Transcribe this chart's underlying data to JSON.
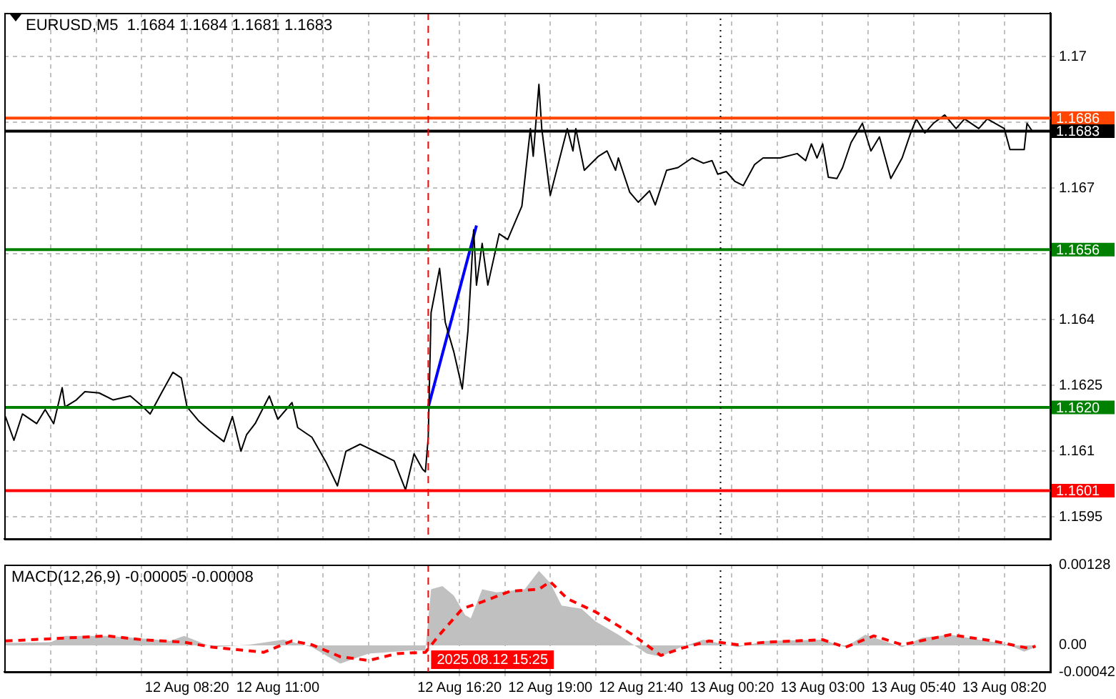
{
  "chart_data": [
    {
      "type": "line",
      "title": "EURUSD,M5  1.1684 1.1684 1.1681 1.1683",
      "x": [
        "2025-08-12T03:00",
        "2025-08-12T03:15",
        "2025-08-12T03:30",
        "2025-08-12T03:55",
        "2025-08-12T04:10",
        "2025-08-12T04:25",
        "2025-08-12T04:40",
        "2025-08-12T04:45",
        "2025-08-12T05:05",
        "2025-08-12T05:20",
        "2025-08-12T05:45",
        "2025-08-12T06:10",
        "2025-08-12T06:40",
        "2025-08-12T07:00",
        "2025-08-12T07:15",
        "2025-08-12T07:35",
        "2025-08-12T07:55",
        "2025-08-12T08:10",
        "2025-08-12T08:20",
        "2025-08-12T08:40",
        "2025-08-12T09:00",
        "2025-08-12T09:25",
        "2025-08-12T09:40",
        "2025-08-12T09:55",
        "2025-08-12T10:05",
        "2025-08-12T10:20",
        "2025-08-12T10:45",
        "2025-08-12T11:00",
        "2025-08-12T11:25",
        "2025-08-12T11:35",
        "2025-08-12T12:00",
        "2025-08-12T12:25",
        "2025-08-12T12:45",
        "2025-08-12T13:00",
        "2025-08-12T13:25",
        "2025-08-12T14:00",
        "2025-08-12T14:25",
        "2025-08-12T14:45",
        "2025-08-12T15:00",
        "2025-08-12T15:15",
        "2025-08-12T15:20",
        "2025-08-12T15:25",
        "2025-08-12T15:30",
        "2025-08-12T15:45",
        "2025-08-12T15:55",
        "2025-08-12T16:10",
        "2025-08-12T16:25",
        "2025-08-12T16:35",
        "2025-08-12T16:45",
        "2025-08-12T16:50",
        "2025-08-12T17:00",
        "2025-08-12T17:10",
        "2025-08-12T17:30",
        "2025-08-12T17:45",
        "2025-08-12T18:10",
        "2025-08-12T18:25",
        "2025-08-12T18:30",
        "2025-08-12T18:40",
        "2025-08-12T18:45",
        "2025-08-12T19:00",
        "2025-08-12T19:30",
        "2025-08-12T19:40",
        "2025-08-12T19:45",
        "2025-08-12T20:00",
        "2025-08-12T20:25",
        "2025-08-12T20:40",
        "2025-08-12T20:55",
        "2025-08-12T21:00",
        "2025-08-12T21:20",
        "2025-08-12T21:35",
        "2025-08-12T21:55",
        "2025-08-12T22:05",
        "2025-08-12T22:25",
        "2025-08-12T22:45",
        "2025-08-12T23:10",
        "2025-08-12T23:30",
        "2025-08-12T23:45",
        "2025-08-12T23:55",
        "2025-08-13T00:10",
        "2025-08-13T00:25",
        "2025-08-13T00:40",
        "2025-08-13T01:00",
        "2025-08-13T01:15",
        "2025-08-13T01:45",
        "2025-08-13T02:15",
        "2025-08-13T02:30",
        "2025-08-13T02:40",
        "2025-08-13T02:50",
        "2025-08-13T03:00",
        "2025-08-13T03:10",
        "2025-08-13T03:25",
        "2025-08-13T03:35",
        "2025-08-13T03:50",
        "2025-08-13T04:10",
        "2025-08-13T04:25",
        "2025-08-13T04:40",
        "2025-08-13T05:00",
        "2025-08-13T05:20",
        "2025-08-13T05:35",
        "2025-08-13T05:45",
        "2025-08-13T06:00",
        "2025-08-13T06:15",
        "2025-08-13T06:35",
        "2025-08-13T06:55",
        "2025-08-13T07:10",
        "2025-08-13T07:35",
        "2025-08-13T07:50",
        "2025-08-13T08:20",
        "2025-08-13T08:30",
        "2025-08-13T08:55",
        "2025-08-13T09:00",
        "2025-08-13T09:10"
      ],
      "xlim": [
        "2025-08-12T02:58",
        "2025-08-13T09:41"
      ],
      "xticks": [
        {
          "value": "2025-08-12T04:20",
          "label": null
        },
        {
          "value": "2025-08-12T05:40",
          "label": null
        },
        {
          "value": "2025-08-12T07:00",
          "label": null
        },
        {
          "value": "2025-08-12T08:20",
          "label": null
        },
        {
          "value": "2025-08-12T09:40",
          "label": null
        },
        {
          "value": "2025-08-12T11:00",
          "label": null
        },
        {
          "value": "2025-08-12T12:20",
          "label": null
        },
        {
          "value": "2025-08-12T13:40",
          "label": null
        },
        {
          "value": "2025-08-12T15:00",
          "label": null
        },
        {
          "value": "2025-08-12T16:20",
          "label": null
        },
        {
          "value": "2025-08-12T17:40",
          "label": null
        },
        {
          "value": "2025-08-12T19:00",
          "label": null
        },
        {
          "value": "2025-08-12T20:20",
          "label": null
        },
        {
          "value": "2025-08-12T21:40",
          "label": null
        },
        {
          "value": "2025-08-12T23:00",
          "label": null
        },
        {
          "value": "2025-08-13T00:20",
          "label": null
        },
        {
          "value": "2025-08-13T01:40",
          "label": null
        },
        {
          "value": "2025-08-13T03:00",
          "label": null
        },
        {
          "value": "2025-08-13T04:20",
          "label": null
        },
        {
          "value": "2025-08-13T05:40",
          "label": null
        },
        {
          "value": "2025-08-13T07:00",
          "label": null
        },
        {
          "value": "2025-08-13T08:20",
          "label": null
        }
      ],
      "ylim": [
        1.159,
        1.171
      ],
      "yticks": [
        1.1595,
        1.161,
        1.1625,
        1.164,
        {
          "value": 1.1655,
          "label": null
        },
        1.167,
        {
          "value": 1.1685,
          "label": null
        },
        1.17
      ],
      "grid": true,
      "legend": false,
      "tick_labels": "y",
      "marker": "none",
      "series": [
        {
          "color": "#000000",
          "values": [
            1.16179,
            1.16125,
            1.16185,
            1.16163,
            1.16195,
            1.16163,
            1.16245,
            1.16201,
            1.16217,
            1.16236,
            1.16233,
            1.16217,
            1.16226,
            1.16204,
            1.16185,
            1.16233,
            1.1628,
            1.16267,
            1.16201,
            1.1617,
            1.16147,
            1.16122,
            1.16179,
            1.161,
            1.16138,
            1.16163,
            1.16226,
            1.16173,
            1.16211,
            1.16154,
            1.16132,
            1.16075,
            1.16021,
            1.161,
            1.16116,
            1.16094,
            1.16078,
            1.16012,
            1.16094,
            1.16059,
            1.16053,
            1.16132,
            1.16416,
            1.16517,
            1.16394,
            1.16327,
            1.16242,
            1.16375,
            1.16605,
            1.16479,
            1.16574,
            1.16479,
            1.16596,
            1.16583,
            1.16659,
            1.16836,
            1.16773,
            1.16937,
            1.16836,
            1.16684,
            1.16836,
            1.16785,
            1.16836,
            1.16741,
            1.16773,
            1.16785,
            1.16741,
            1.16769,
            1.16691,
            1.16668,
            1.16694,
            1.16662,
            1.16741,
            1.16747,
            1.16769,
            1.16757,
            1.16763,
            1.16732,
            1.16738,
            1.16716,
            1.16706,
            1.16754,
            1.16769,
            1.16769,
            1.16779,
            1.16763,
            1.16801,
            1.16769,
            1.16801,
            1.16725,
            1.16722,
            1.16747,
            1.16804,
            1.16848,
            1.16785,
            1.16817,
            1.16722,
            1.16769,
            1.16826,
            1.16858,
            1.16826,
            1.16848,
            1.16867,
            1.16836,
            1.16858,
            1.16836,
            1.16858,
            1.16836,
            1.16788,
            1.16788,
            1.16848,
            1.16829
          ]
        },
        {
          "type": "line",
          "color": "#0000ff",
          "x": [
            "2025-08-12T15:25",
            "2025-08-12T16:50"
          ],
          "values": [
            1.162,
            1.16615
          ]
        }
      ],
      "ref_lines": [
        {
          "axis": "y",
          "value": 1.1656,
          "label": "1.1656",
          "color": "#008000"
        },
        {
          "axis": "y",
          "value": 1.162,
          "label": "1.1620",
          "color": "#008000"
        },
        {
          "axis": "y",
          "value": 1.1601,
          "label": "1.1601",
          "color": "#ff0000"
        },
        {
          "axis": "y",
          "value": 1.1686,
          "label": "1.1686",
          "color": "#ff4500"
        },
        {
          "axis": "y",
          "value": 1.1683,
          "label": "1.1683",
          "color": "#000000"
        },
        {
          "axis": "x",
          "value": "2025-08-12T15:25",
          "color": "#ff0000",
          "line_style": "dashed"
        },
        {
          "axis": "x",
          "value": "2025-08-13T00:00",
          "color": "#000000",
          "line_style": "dotted"
        }
      ]
    },
    {
      "type": "area",
      "title": "MACD(12,26,9) -0.00005 -0.00008",
      "xlim": [
        "2025-08-12T02:58",
        "2025-08-13T09:41"
      ],
      "xticks": [
        {
          "value": "2025-08-12T04:20",
          "label": null
        },
        {
          "value": "2025-08-12T05:40",
          "label": null
        },
        {
          "value": "2025-08-12T07:00",
          "label": null
        },
        {
          "value": "2025-08-12T08:20",
          "label": "12 Aug 08:20"
        },
        {
          "value": "2025-08-12T09:40",
          "label": null
        },
        {
          "value": "2025-08-12T11:00",
          "label": "12 Aug 11:00"
        },
        {
          "value": "2025-08-12T12:20",
          "label": null
        },
        {
          "value": "2025-08-12T13:40",
          "label": null
        },
        {
          "value": "2025-08-12T15:00",
          "label": null
        },
        {
          "value": "2025-08-12T16:20",
          "label": "12 Aug 16:20"
        },
        {
          "value": "2025-08-12T17:40",
          "label": null
        },
        {
          "value": "2025-08-12T19:00",
          "label": "12 Aug 19:00"
        },
        {
          "value": "2025-08-12T20:20",
          "label": null
        },
        {
          "value": "2025-08-12T21:40",
          "label": "12 Aug 21:40"
        },
        {
          "value": "2025-08-12T23:00",
          "label": null
        },
        {
          "value": "2025-08-13T00:20",
          "label": "13 Aug 00:20"
        },
        {
          "value": "2025-08-13T01:40",
          "label": null
        },
        {
          "value": "2025-08-13T03:00",
          "label": "13 Aug 03:00"
        },
        {
          "value": "2025-08-13T04:20",
          "label": null
        },
        {
          "value": "2025-08-13T05:40",
          "label": "13 Aug 05:40"
        },
        {
          "value": "2025-08-13T07:00",
          "label": null
        },
        {
          "value": "2025-08-13T08:20",
          "label": "13 Aug 08:20"
        }
      ],
      "ylim": [
        -0.00042,
        0.00128
      ],
      "yticks": [
        -0.00042,
        {
          "value": 0,
          "label": "0.00"
        },
        0.00128
      ],
      "grid": "x",
      "legend": false,
      "marker": "none",
      "series": [
        {
          "color": "#c0c0c0",
          "x": [
            "2025-08-12T03:00",
            "2025-08-12T04:20",
            "2025-08-12T04:45",
            "2025-08-12T06:00",
            "2025-08-12T07:00",
            "2025-08-12T07:50",
            "2025-08-12T08:15",
            "2025-08-12T09:05",
            "2025-08-12T10:10",
            "2025-08-12T11:10",
            "2025-08-12T12:00",
            "2025-08-12T12:50",
            "2025-08-12T13:40",
            "2025-08-12T14:55",
            "2025-08-12T15:20",
            "2025-08-12T15:30",
            "2025-08-12T15:50",
            "2025-08-12T16:10",
            "2025-08-12T16:30",
            "2025-08-12T16:40",
            "2025-08-12T17:00",
            "2025-08-12T17:25",
            "2025-08-12T18:15",
            "2025-08-12T18:40",
            "2025-08-12T19:00",
            "2025-08-12T19:20",
            "2025-08-12T19:55",
            "2025-08-12T20:20",
            "2025-08-12T21:00",
            "2025-08-12T21:25",
            "2025-08-12T21:50",
            "2025-08-12T22:15",
            "2025-08-12T22:50",
            "2025-08-12T23:30",
            "2025-08-13T00:30",
            "2025-08-13T01:20",
            "2025-08-13T03:00",
            "2025-08-13T03:40",
            "2025-08-13T04:15",
            "2025-08-13T05:20",
            "2025-08-13T05:55",
            "2025-08-13T06:45",
            "2025-08-13T07:35",
            "2025-08-13T08:25",
            "2025-08-13T08:55",
            "2025-08-13T09:15"
          ],
          "values": [
            4e-05,
            5e-05,
            0.00015,
            0.00015,
            0.00011,
            7e-05,
            0.00015,
            -3e-05,
            1e-05,
            9e-05,
            -3e-05,
            -0.00029,
            -0.00013,
            -8e-05,
            -8e-05,
            0.00089,
            0.00094,
            0.00079,
            0.00048,
            0.00043,
            0.00089,
            0.00084,
            0.00089,
            0.00118,
            0.00099,
            0.00063,
            0.00058,
            0.00038,
            0.00017,
            2e-05,
            -0.00013,
            -0.00018,
            -3e-05,
            9e-05,
            -3e-05,
            7e-05,
            9e-05,
            -3e-05,
            0.00017,
            -3e-05,
            0.00012,
            0.00017,
            9e-05,
            2e-05,
            -0.0001,
            -3e-05
          ]
        },
        {
          "type": "line",
          "color": "#ff0000",
          "line_style": "dashed",
          "x": [
            "2025-08-12T03:00",
            "2025-08-12T04:55",
            "2025-08-12T06:00",
            "2025-08-12T07:00",
            "2025-08-12T08:15",
            "2025-08-12T09:05",
            "2025-08-12T10:35",
            "2025-08-12T11:25",
            "2025-08-12T12:00",
            "2025-08-12T12:50",
            "2025-08-12T13:40",
            "2025-08-12T14:30",
            "2025-08-12T15:20",
            "2025-08-12T15:45",
            "2025-08-12T16:25",
            "2025-08-12T17:00",
            "2025-08-12T17:50",
            "2025-08-12T18:40",
            "2025-08-12T19:00",
            "2025-08-12T19:30",
            "2025-08-12T20:20",
            "2025-08-12T21:25",
            "2025-08-12T22:15",
            "2025-08-12T22:50",
            "2025-08-12T23:40",
            "2025-08-13T00:30",
            "2025-08-13T01:20",
            "2025-08-13T03:00",
            "2025-08-13T03:40",
            "2025-08-13T04:30",
            "2025-08-13T05:20",
            "2025-08-13T06:45",
            "2025-08-13T08:00",
            "2025-08-13T09:05",
            "2025-08-13T09:15"
          ],
          "values": [
            7e-05,
            0.00012,
            0.00015,
            9e-05,
            5e-05,
            -3e-05,
            -0.00011,
            7e-05,
            1e-05,
            -0.00018,
            -0.00024,
            -0.00013,
            -0.00011,
            0.00017,
            0.00058,
            0.00069,
            0.00086,
            0.00089,
            0.00101,
            0.00074,
            0.00053,
            0.00017,
            -0.00016,
            -5e-05,
            7e-05,
            1e-05,
            5e-05,
            9e-05,
            -3e-05,
            0.00015,
            1e-05,
            0.00017,
            7e-05,
            -5e-05,
            -1e-05
          ]
        }
      ],
      "ref_lines": [
        {
          "axis": "x",
          "value": "2025-08-12T15:25",
          "label": "2025.08.12 15:25",
          "color": "#ff0000",
          "line_style": "dashed"
        },
        {
          "axis": "x",
          "value": "2025-08-13T00:00",
          "color": "#000000",
          "line_style": "dotted"
        }
      ]
    }
  ]
}
